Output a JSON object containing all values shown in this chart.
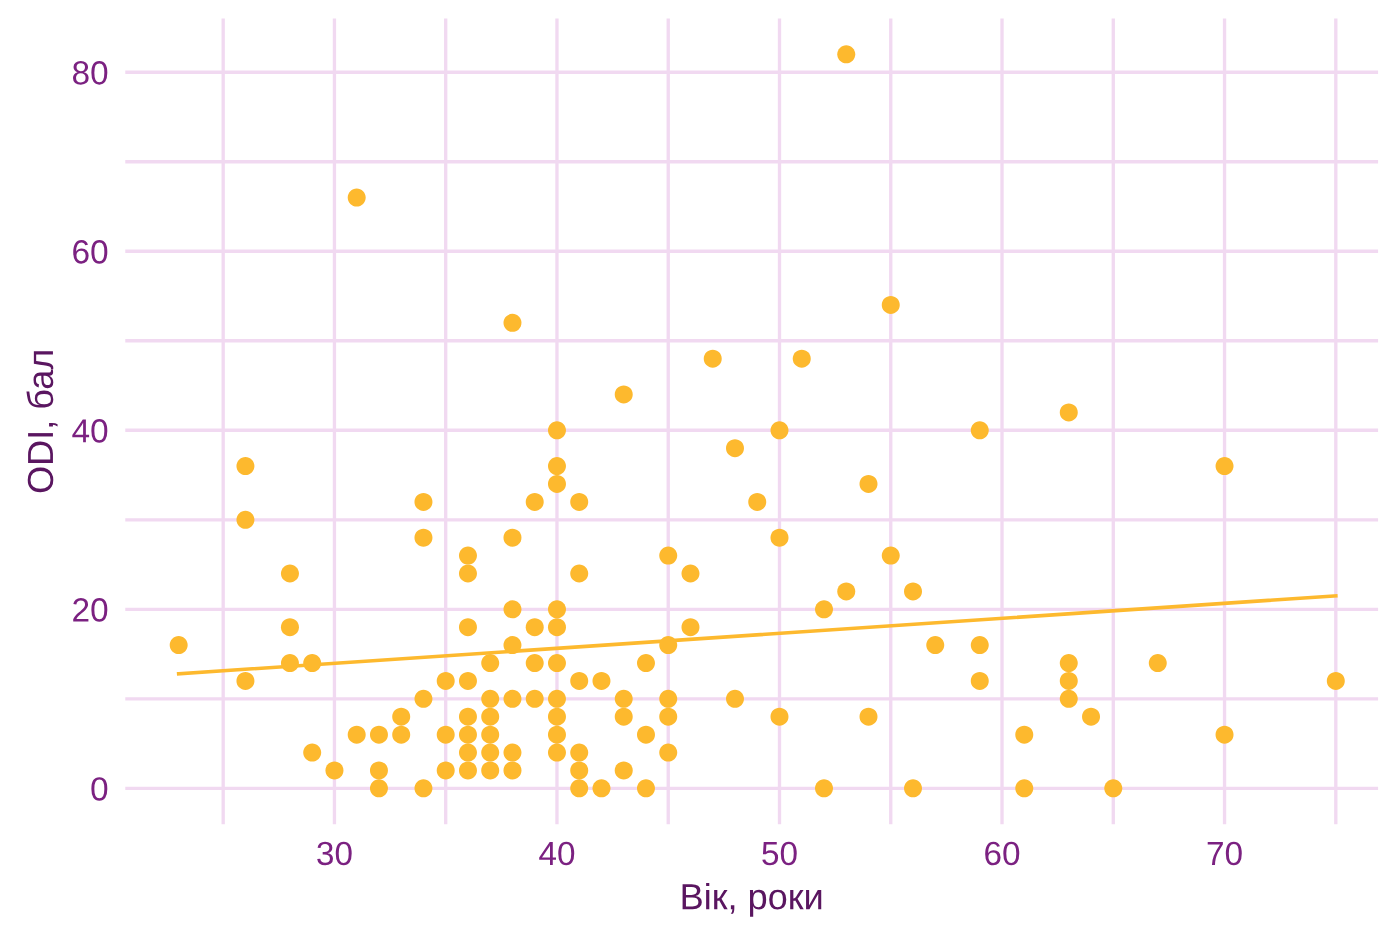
{
  "chart_data": {
    "type": "scatter",
    "xlabel": "Вік, роки",
    "ylabel": "ODI, бал",
    "xlim": [
      20.6,
      76.9
    ],
    "ylim": [
      -4,
      86
    ],
    "xticks": [
      {
        "value": 25,
        "label": null
      },
      30,
      {
        "value": 35,
        "label": null
      },
      40,
      {
        "value": 45,
        "label": null
      },
      50,
      {
        "value": 55,
        "label": null
      },
      60,
      {
        "value": 65,
        "label": null
      },
      70,
      {
        "value": 75,
        "label": null
      }
    ],
    "yticks": [
      0,
      {
        "value": 10,
        "label": null
      },
      20,
      {
        "value": 30,
        "label": null
      },
      40,
      {
        "value": 50,
        "label": null
      },
      60,
      {
        "value": 70,
        "label": null
      },
      80
    ],
    "grid": true,
    "series": [
      {
        "color": "#fdb92e",
        "marker": "circle",
        "x": [
          23,
          26,
          26,
          26,
          28,
          28,
          28,
          29,
          29,
          30,
          31,
          31,
          32,
          32,
          32,
          33,
          33,
          34,
          34,
          34,
          34,
          35,
          35,
          35,
          36,
          36,
          36,
          36,
          36,
          36,
          36,
          36,
          37,
          37,
          37,
          37,
          37,
          37,
          38,
          38,
          38,
          38,
          38,
          38,
          38,
          39,
          39,
          39,
          39,
          40,
          40,
          40,
          40,
          40,
          40,
          40,
          40,
          40,
          40,
          41,
          41,
          41,
          41,
          41,
          41,
          42,
          42,
          43,
          43,
          43,
          43,
          44,
          44,
          44,
          45,
          45,
          45,
          45,
          45,
          46,
          46,
          47,
          48,
          48,
          49,
          50,
          50,
          50,
          51,
          52,
          52,
          53,
          53,
          54,
          54,
          55,
          55,
          56,
          56,
          57,
          59,
          59,
          59,
          61,
          61,
          63,
          63,
          63,
          63,
          64,
          65,
          67,
          70,
          70,
          75
        ],
        "values": [
          16,
          36,
          30,
          12,
          24,
          18,
          14,
          14,
          4,
          2,
          66,
          6,
          6,
          2,
          0,
          8,
          6,
          32,
          28,
          10,
          0,
          12,
          6,
          2,
          26,
          24,
          18,
          12,
          8,
          6,
          4,
          2,
          14,
          10,
          8,
          6,
          4,
          2,
          52,
          28,
          20,
          16,
          10,
          4,
          2,
          32,
          18,
          14,
          10,
          40,
          36,
          34,
          20,
          18,
          14,
          10,
          8,
          6,
          4,
          32,
          24,
          12,
          4,
          2,
          0,
          12,
          0,
          44,
          10,
          8,
          2,
          14,
          6,
          0,
          26,
          16,
          10,
          8,
          4,
          24,
          18,
          48,
          38,
          10,
          32,
          40,
          28,
          8,
          48,
          20,
          0,
          82,
          22,
          34,
          8,
          54,
          26,
          22,
          0,
          16,
          40,
          16,
          12,
          6,
          0,
          42,
          14,
          12,
          10,
          8,
          0,
          14,
          36,
          6,
          12
        ]
      },
      {
        "type": "line",
        "color": "#fdb92e",
        "x": [
          23,
          75
        ],
        "values": [
          12.8,
          21.5
        ]
      }
    ]
  }
}
